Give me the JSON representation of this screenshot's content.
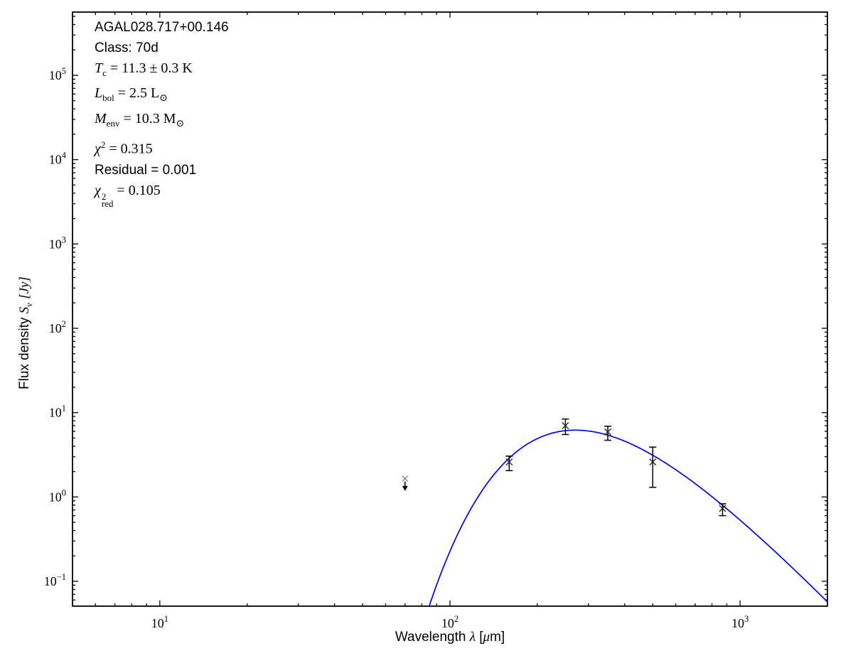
{
  "annotation": {
    "source": "AGAL028.717+00.146",
    "class_line": "Class: 70d",
    "tc": {
      "var": "T",
      "sub": "c",
      "rest": " = 11.3 ± 0.3 K"
    },
    "lbol": {
      "var": "L",
      "sub": "bol",
      "rest": " = 2.5 L",
      "sun": "⊙"
    },
    "menv": {
      "var": "M",
      "sub": "env",
      "rest": " = 10.3 M",
      "sun": "⊙"
    },
    "chi2": {
      "var": "χ",
      "sup": "2",
      "rest": " = 0.315"
    },
    "residual": "Residual = 0.001",
    "chired": {
      "var": "χ",
      "sup": "2",
      "sub": "red",
      "rest": " = 0.105"
    }
  },
  "chart_data": {
    "type": "scatter",
    "title": "",
    "xlabel": {
      "text": "Wavelength",
      "symbol": "λ",
      "unit_open": "[",
      "unit_mu": "μ",
      "unit_close": "m]"
    },
    "ylabel": {
      "text": "Flux density",
      "symbol": "S",
      "symbol_sub": "ν",
      "units": "[Jy]"
    },
    "x_axis": {
      "scale": "log",
      "min": 5,
      "max": 2000,
      "tick_base": "10",
      "major_tick_exponents": [
        1,
        2,
        3
      ]
    },
    "y_axis": {
      "scale": "log",
      "min": 0.0507,
      "max": 562000,
      "tick_base": "10",
      "major_tick_exponents": [
        5,
        4,
        3,
        2,
        1,
        0,
        -1
      ]
    },
    "grid": false,
    "legend": "none",
    "points": [
      {
        "lambda_um": 160,
        "flux_jy": 2.6,
        "err_hi_jy": 3.05,
        "err_lo_jy": 2.05
      },
      {
        "lambda_um": 250,
        "flux_jy": 7.0,
        "err_hi_jy": 8.4,
        "err_lo_jy": 5.5
      },
      {
        "lambda_um": 350,
        "flux_jy": 5.9,
        "err_hi_jy": 6.9,
        "err_lo_jy": 4.7
      },
      {
        "lambda_um": 500,
        "flux_jy": 2.6,
        "err_hi_jy": 3.9,
        "err_lo_jy": 1.3
      },
      {
        "lambda_um": 870,
        "flux_jy": 0.73,
        "err_hi_jy": 0.83,
        "err_lo_jy": 0.6
      }
    ],
    "upper_limit": {
      "lambda_um": 70,
      "flux_jy": 1.65,
      "arrow_to_jy": 1.25
    },
    "model_curve": {
      "kind": "greybody",
      "T_K": 11.3,
      "beta": 1.75,
      "peak_flux_jy": 6.2,
      "lambda_range_um": [
        76,
        2000
      ]
    },
    "colors": {
      "curve": "#0202e8",
      "marker": "#2a2a2a",
      "limit_marker": "#8a8a8a",
      "axis": "#000000"
    }
  }
}
